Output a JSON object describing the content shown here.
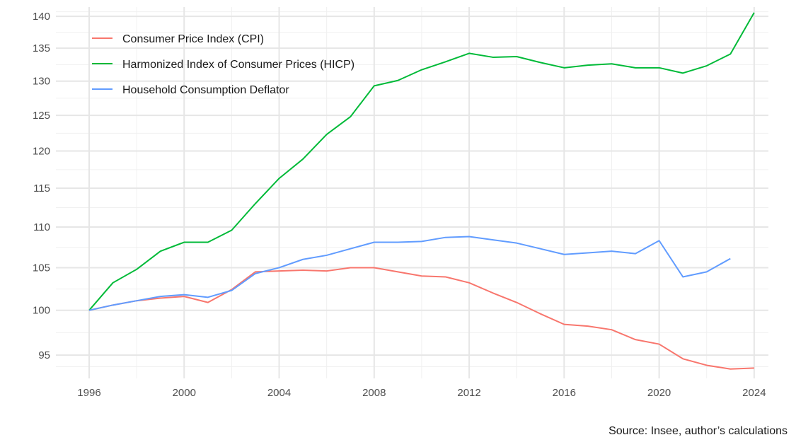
{
  "chart_data": {
    "type": "line",
    "title": "",
    "xlabel": "",
    "ylabel": "",
    "caption": "Source: Insee, author’s calculations",
    "x": [
      1996,
      1997,
      1998,
      1999,
      2000,
      2001,
      2002,
      2003,
      2004,
      2005,
      2006,
      2007,
      2008,
      2009,
      2010,
      2011,
      2012,
      2013,
      2014,
      2015,
      2016,
      2017,
      2018,
      2019,
      2020,
      2021,
      2022,
      2023,
      2024
    ],
    "xlim": [
      1994.6,
      2024.6
    ],
    "ylim": [
      92.5,
      141.5
    ],
    "y_scale": "log",
    "x_ticks": [
      1996,
      2000,
      2004,
      2008,
      2012,
      2016,
      2020,
      2024
    ],
    "y_ticks": [
      95,
      100,
      105,
      110,
      115,
      120,
      125,
      130,
      135,
      140
    ],
    "grid": true,
    "legend_position": "top-left",
    "series": [
      {
        "name": "Consumer Price Index (CPI)",
        "color": "#f8766d",
        "values": [
          100,
          100.6,
          101.1,
          101.4,
          101.6,
          100.9,
          102.4,
          104.5,
          104.6,
          104.7,
          104.6,
          105.0,
          105.0,
          104.5,
          104.0,
          103.9,
          103.2,
          102.0,
          100.9,
          99.6,
          98.4,
          98.2,
          97.8,
          96.7,
          96.2,
          94.6,
          93.9,
          93.5,
          93.6
        ]
      },
      {
        "name": "Harmonized Index of Consumer Prices (HICP)",
        "color": "#00ba38",
        "values": [
          100,
          103.2,
          104.8,
          107.0,
          108.1,
          108.1,
          109.6,
          113.0,
          116.3,
          118.9,
          122.3,
          124.8,
          129.3,
          130.1,
          131.7,
          132.9,
          134.2,
          133.6,
          133.7,
          132.8,
          132.0,
          132.4,
          132.6,
          132.0,
          132.0,
          131.2,
          132.3,
          134.1,
          140.6
        ]
      },
      {
        "name": "Household Consumption Deflator",
        "color": "#619cff",
        "values": [
          100,
          100.6,
          101.1,
          101.6,
          101.8,
          101.5,
          102.3,
          104.3,
          105.0,
          106.0,
          106.5,
          107.3,
          108.1,
          108.1,
          108.2,
          108.7,
          108.8,
          108.4,
          108.0,
          107.3,
          106.6,
          106.8,
          107.0,
          106.7,
          108.3,
          103.9,
          104.5,
          106.1,
          null
        ]
      }
    ]
  }
}
